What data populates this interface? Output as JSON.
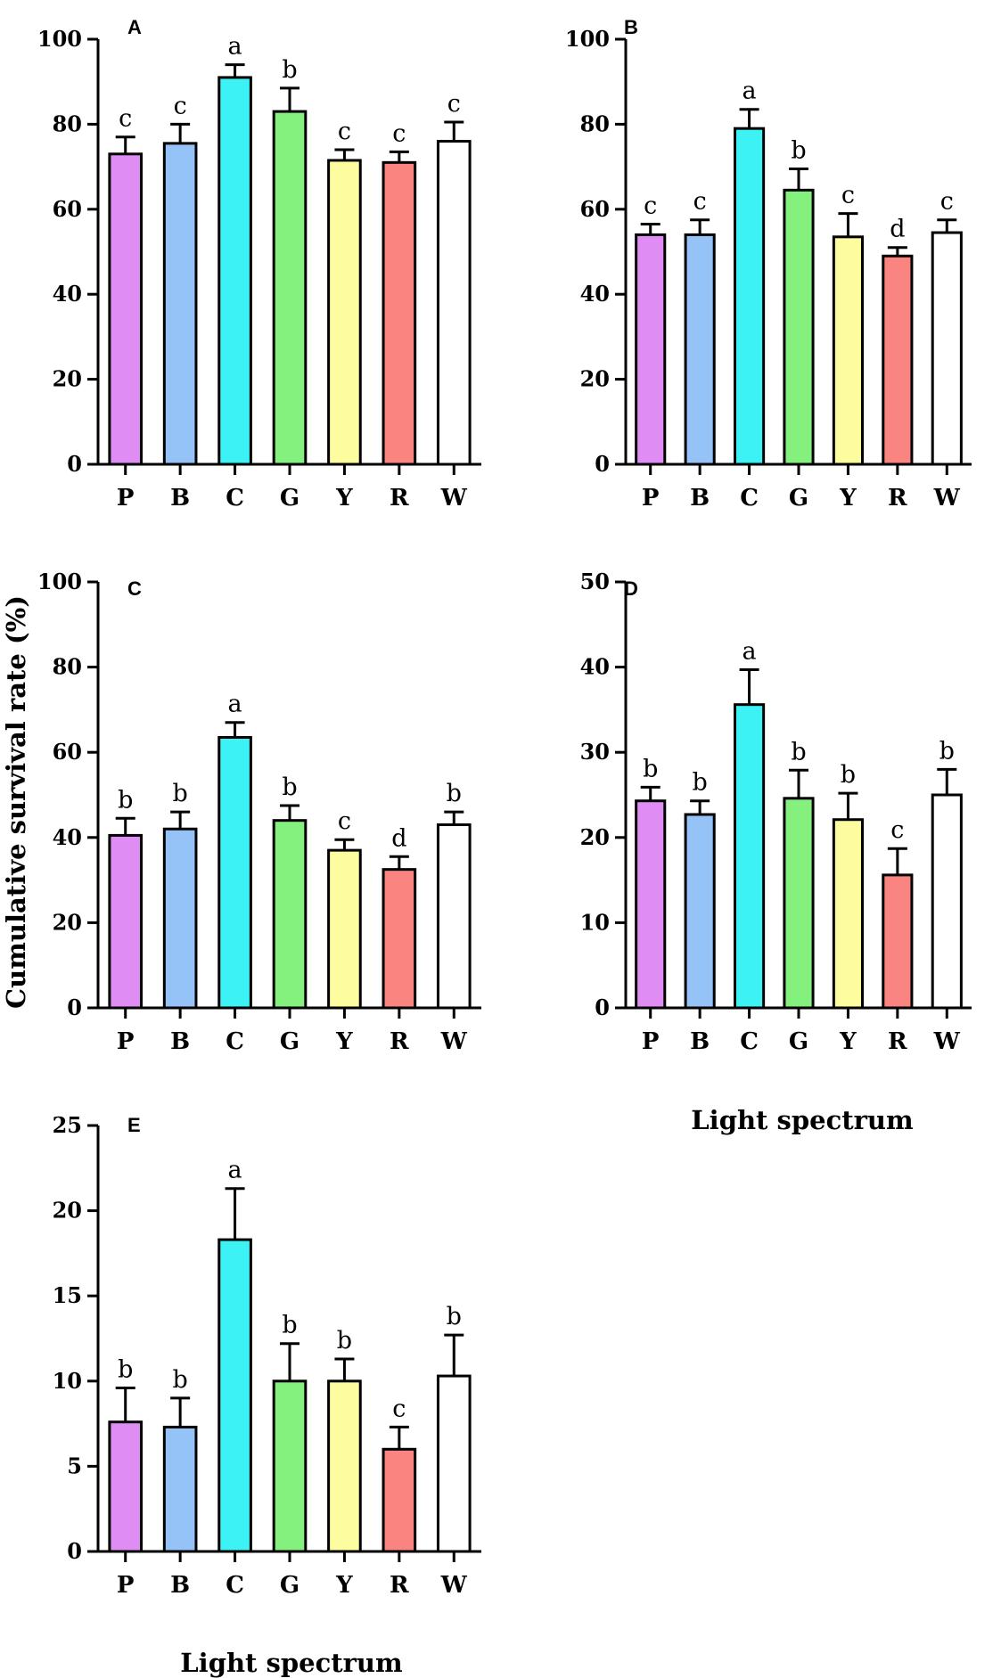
{
  "figure": {
    "ylabel": "Cumulative survival rate (%)",
    "xlabel": "Light spectrum"
  },
  "colors": {
    "P": "#df8df4",
    "B": "#95c3f8",
    "C": "#3cf2f4",
    "G": "#84f07e",
    "Y": "#fdfc9e",
    "R": "#f98480",
    "W": "#ffffff"
  },
  "chart_data": [
    {
      "type": "bar",
      "panel": "A",
      "categories": [
        "P",
        "B",
        "C",
        "G",
        "Y",
        "R",
        "W"
      ],
      "values": [
        73,
        75.5,
        91,
        83,
        71.5,
        71,
        76
      ],
      "errors": [
        4,
        4.5,
        3,
        5.5,
        2.5,
        2.5,
        4.5
      ],
      "letters": [
        "c",
        "c",
        "a",
        "b",
        "c",
        "c",
        "c"
      ],
      "ylim": [
        0,
        100
      ],
      "yticks": [
        0,
        20,
        40,
        60,
        80,
        100
      ]
    },
    {
      "type": "bar",
      "panel": "B",
      "categories": [
        "P",
        "B",
        "C",
        "G",
        "Y",
        "R",
        "W"
      ],
      "values": [
        54,
        54,
        79,
        64.5,
        53.5,
        49,
        54.5
      ],
      "errors": [
        2.5,
        3.5,
        4.5,
        5,
        5.5,
        2,
        3
      ],
      "letters": [
        "c",
        "c",
        "a",
        "b",
        "c",
        "d",
        "c"
      ],
      "ylim": [
        0,
        100
      ],
      "yticks": [
        0,
        20,
        40,
        60,
        80,
        100
      ]
    },
    {
      "type": "bar",
      "panel": "C",
      "categories": [
        "P",
        "B",
        "C",
        "G",
        "Y",
        "R",
        "W"
      ],
      "values": [
        40.5,
        42,
        63.5,
        44,
        37,
        32.5,
        43
      ],
      "errors": [
        4,
        4,
        3.5,
        3.5,
        2.5,
        3,
        3
      ],
      "letters": [
        "b",
        "b",
        "a",
        "b",
        "c",
        "d",
        "b"
      ],
      "ylim": [
        0,
        100
      ],
      "yticks": [
        0,
        20,
        40,
        60,
        80,
        100
      ]
    },
    {
      "type": "bar",
      "panel": "D",
      "categories": [
        "P",
        "B",
        "C",
        "G",
        "Y",
        "R",
        "W"
      ],
      "values": [
        24.3,
        22.7,
        35.6,
        24.6,
        22.1,
        15.6,
        25
      ],
      "errors": [
        1.6,
        1.6,
        4.1,
        3.3,
        3.1,
        3.1,
        3
      ],
      "letters": [
        "b",
        "b",
        "a",
        "b",
        "b",
        "c",
        "b"
      ],
      "ylim": [
        0,
        50
      ],
      "yticks": [
        0,
        10,
        20,
        30,
        40,
        50
      ]
    },
    {
      "type": "bar",
      "panel": "E",
      "categories": [
        "P",
        "B",
        "C",
        "G",
        "Y",
        "R",
        "W"
      ],
      "values": [
        7.6,
        7.3,
        18.3,
        10,
        10,
        6,
        10.3
      ],
      "errors": [
        2,
        1.7,
        3,
        2.2,
        1.3,
        1.3,
        2.4
      ],
      "letters": [
        "b",
        "b",
        "a",
        "b",
        "b",
        "c",
        "b"
      ],
      "ylim": [
        0,
        25
      ],
      "yticks": [
        0,
        5,
        10,
        15,
        20,
        25
      ]
    }
  ]
}
